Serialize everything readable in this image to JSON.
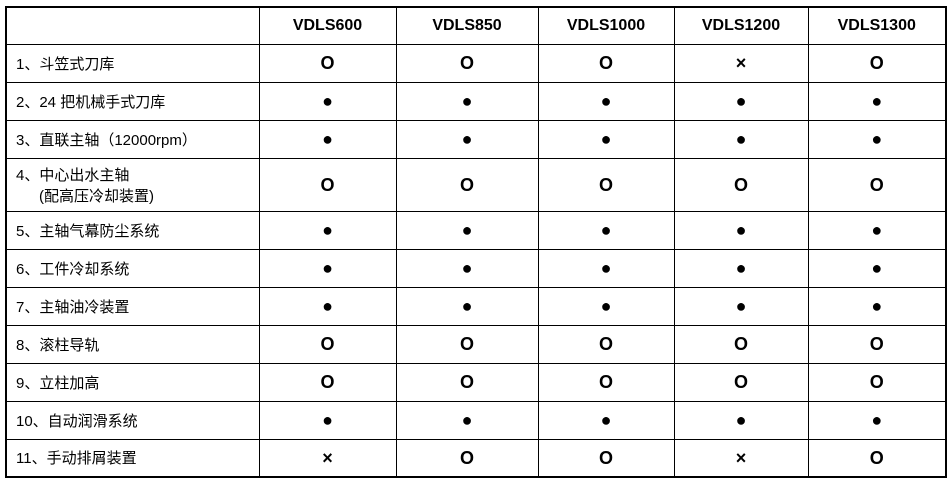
{
  "colors": {
    "background": "#ffffff",
    "border": "#000000",
    "text": "#000000"
  },
  "table": {
    "columns": [
      "",
      "VDLS600",
      "VDLS850",
      "VDLS1000",
      "VDLS1200",
      "VDLS1300"
    ],
    "rows": [
      {
        "label": "1、斗笠式刀库",
        "cells": [
          "O",
          "O",
          "O",
          "×",
          "O"
        ]
      },
      {
        "label": "2、24 把机械手式刀库",
        "cells": [
          "●",
          "●",
          "●",
          "●",
          "●"
        ]
      },
      {
        "label": "3、直联主轴（12000rpm）",
        "cells": [
          "●",
          "●",
          "●",
          "●",
          "●"
        ]
      },
      {
        "label": "4、中心出水主轴",
        "label2": "(配高压冷却装置)",
        "cells": [
          "O",
          "O",
          "O",
          "O",
          "O"
        ]
      },
      {
        "label": "5、主轴气幕防尘系统",
        "cells": [
          "●",
          "●",
          "●",
          "●",
          "●"
        ]
      },
      {
        "label": "6、工件冷却系统",
        "cells": [
          "●",
          "●",
          "●",
          "●",
          "●"
        ]
      },
      {
        "label": "7、主轴油冷装置",
        "cells": [
          "●",
          "●",
          "●",
          "●",
          "●"
        ]
      },
      {
        "label": "8、滚柱导轨",
        "cells": [
          "O",
          "O",
          "O",
          "O",
          "O"
        ]
      },
      {
        "label": "9、立柱加高",
        "cells": [
          "O",
          "O",
          "O",
          "O",
          "O"
        ]
      },
      {
        "label": "10、自动润滑系统",
        "cells": [
          "●",
          "●",
          "●",
          "●",
          "●"
        ]
      },
      {
        "label": "11、手动排屑装置",
        "cells": [
          "×",
          "O",
          "O",
          "×",
          "O"
        ]
      }
    ]
  }
}
